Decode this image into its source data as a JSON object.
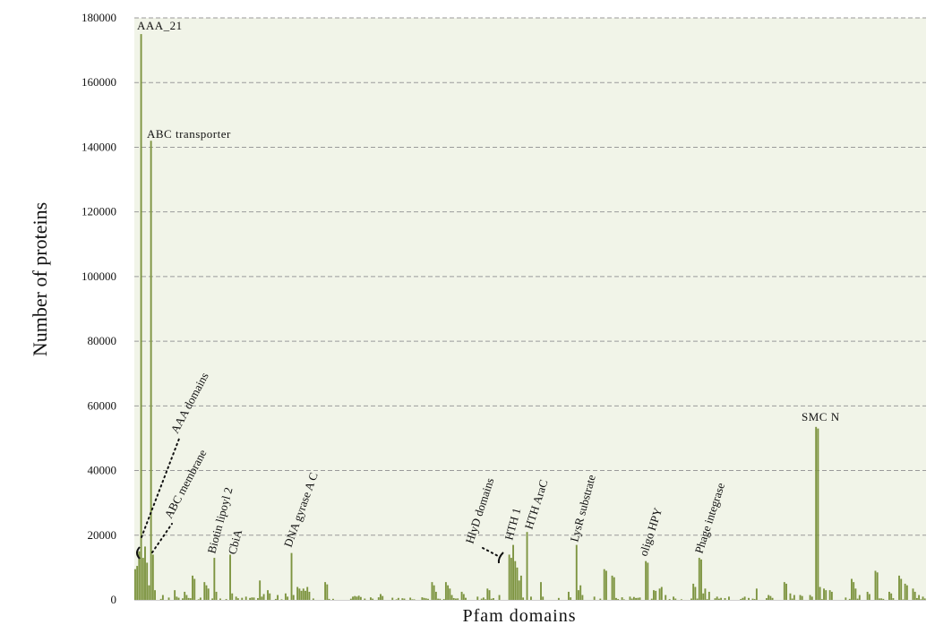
{
  "chart_data": {
    "type": "bar",
    "title": "",
    "xlabel": "Pfam domains",
    "ylabel": "Number of proteins",
    "ylim": [
      0,
      180000
    ],
    "yticks": [
      0,
      20000,
      40000,
      60000,
      80000,
      100000,
      120000,
      140000,
      160000,
      180000
    ],
    "ytick_labels": [
      "0",
      "20000",
      "40000",
      "60000",
      "80000",
      "100000",
      "120000",
      "140000",
      "160000",
      "180000"
    ],
    "grid": "horizontal dashed",
    "legend": "none",
    "bar_count": 400,
    "values": [],
    "annotations": [
      {
        "label": "AAA_21",
        "category": 3,
        "value": 175000,
        "rotated": false
      },
      {
        "label": "ABC transporter",
        "category": 8,
        "value": 142000,
        "rotated": false
      },
      {
        "label": "AAA domains",
        "category": 3,
        "value": 60000,
        "rotated": true,
        "bracket": true
      },
      {
        "label": "ABC membrane",
        "category": 8,
        "value": 40000,
        "rotated": true
      },
      {
        "label": "Biotin lipoyl 2",
        "category": 40,
        "value": 13000,
        "rotated": true
      },
      {
        "label": "CbiA",
        "category": 48,
        "value": 14000,
        "rotated": true
      },
      {
        "label": "DNA gyrase A C",
        "category": 79,
        "value": 14000,
        "rotated": true
      },
      {
        "label": "HlyD domains",
        "category": 186,
        "value": 14000,
        "rotated": true,
        "bracket": true
      },
      {
        "label": "HTH 1",
        "category": 191,
        "value": 17000,
        "rotated": true
      },
      {
        "label": "HTH AraC",
        "category": 198,
        "value": 21000,
        "rotated": true
      },
      {
        "label": "LysR substrate",
        "category": 223,
        "value": 17000,
        "rotated": true
      },
      {
        "label": "oligo HPY",
        "category": 258,
        "value": 12000,
        "rotated": true
      },
      {
        "label": "Phage integrase",
        "category": 285,
        "value": 13000,
        "rotated": true
      },
      {
        "label": "SMC N",
        "category": 344,
        "value": 53500,
        "rotated": false
      }
    ],
    "colors": {
      "bar": "#7d9440",
      "plot_bg": "#f1f4e8",
      "grid": "#9a9a9a"
    }
  }
}
